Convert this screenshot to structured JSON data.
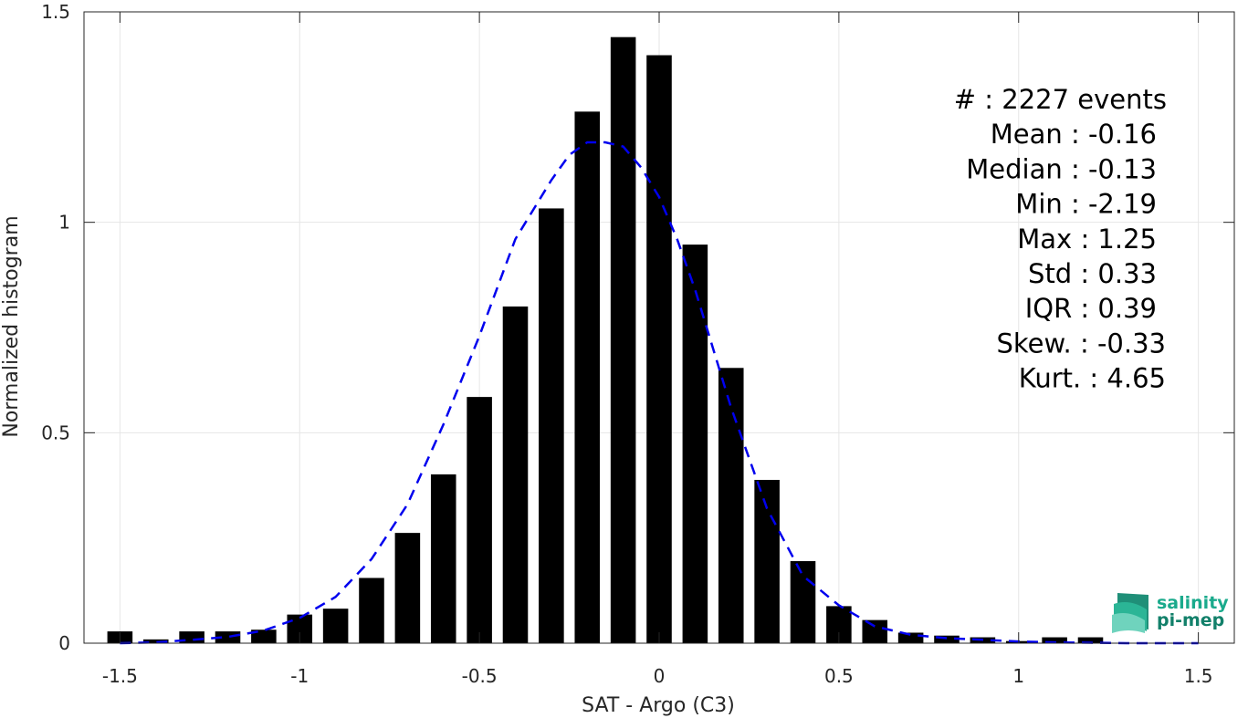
{
  "chart_data": {
    "type": "bar",
    "xlabel": "SAT - Argo (C3)",
    "ylabel": "Normalized histogram",
    "xlim": [
      -1.6,
      1.6
    ],
    "ylim": [
      0,
      1.5
    ],
    "xticks": [
      -1.5,
      -1,
      -0.5,
      0,
      0.5,
      1,
      1.5
    ],
    "xtick_labels": [
      "-1.5",
      "-1",
      "-0.5",
      "0",
      "0.5",
      "1",
      "1.5"
    ],
    "yticks": [
      0,
      0.5,
      1,
      1.5
    ],
    "ytick_labels": [
      "0",
      "0.5",
      "1",
      "1.5"
    ],
    "grid": true,
    "bar_color": "#000000",
    "bar_width": 0.07,
    "bars": {
      "x": [
        -1.5,
        -1.4,
        -1.3,
        -1.2,
        -1.1,
        -1.0,
        -0.9,
        -0.8,
        -0.7,
        -0.6,
        -0.5,
        -0.4,
        -0.3,
        -0.2,
        -0.1,
        0.0,
        0.1,
        0.2,
        0.3,
        0.4,
        0.5,
        0.6,
        0.7,
        0.8,
        0.9,
        1.0,
        1.1,
        1.2
      ],
      "values": [
        0.028,
        0.009,
        0.028,
        0.028,
        0.032,
        0.068,
        0.082,
        0.155,
        0.262,
        0.401,
        0.585,
        0.8,
        1.033,
        1.263,
        1.44,
        1.397,
        0.947,
        0.654,
        0.388,
        0.195,
        0.088,
        0.055,
        0.025,
        0.018,
        0.014,
        0.005,
        0.014,
        0.014
      ]
    },
    "fit_curve": {
      "style": "dashed",
      "color": "#0000ee",
      "x": [
        -1.5,
        -1.4,
        -1.3,
        -1.2,
        -1.1,
        -1.0,
        -0.9,
        -0.8,
        -0.7,
        -0.6,
        -0.5,
        -0.4,
        -0.3,
        -0.25,
        -0.2,
        -0.15,
        -0.1,
        -0.05,
        0.0,
        0.05,
        0.1,
        0.2,
        0.3,
        0.4,
        0.5,
        0.6,
        0.7,
        0.8,
        0.9,
        1.0,
        1.1,
        1.2,
        1.3,
        1.4,
        1.5
      ],
      "y": [
        0.0,
        0.002,
        0.008,
        0.015,
        0.03,
        0.06,
        0.11,
        0.2,
        0.33,
        0.52,
        0.73,
        0.96,
        1.1,
        1.16,
        1.19,
        1.19,
        1.18,
        1.13,
        1.06,
        0.96,
        0.84,
        0.56,
        0.32,
        0.16,
        0.09,
        0.04,
        0.02,
        0.012,
        0.008,
        0.004,
        0.002,
        0.001,
        0.0,
        0.0,
        0.0
      ]
    },
    "stats": [
      "#  : 2227 events",
      "Mean : -0.16",
      "Median : -0.13",
      "Min : -2.19",
      "Max : 1.25",
      "Std : 0.33",
      "IQR : 0.39",
      "Skew. : -0.33",
      "Kurt. : 4.65"
    ]
  },
  "logo": {
    "line1": "salinity",
    "line2": "pi-mep",
    "color": "#1aaa8c"
  }
}
